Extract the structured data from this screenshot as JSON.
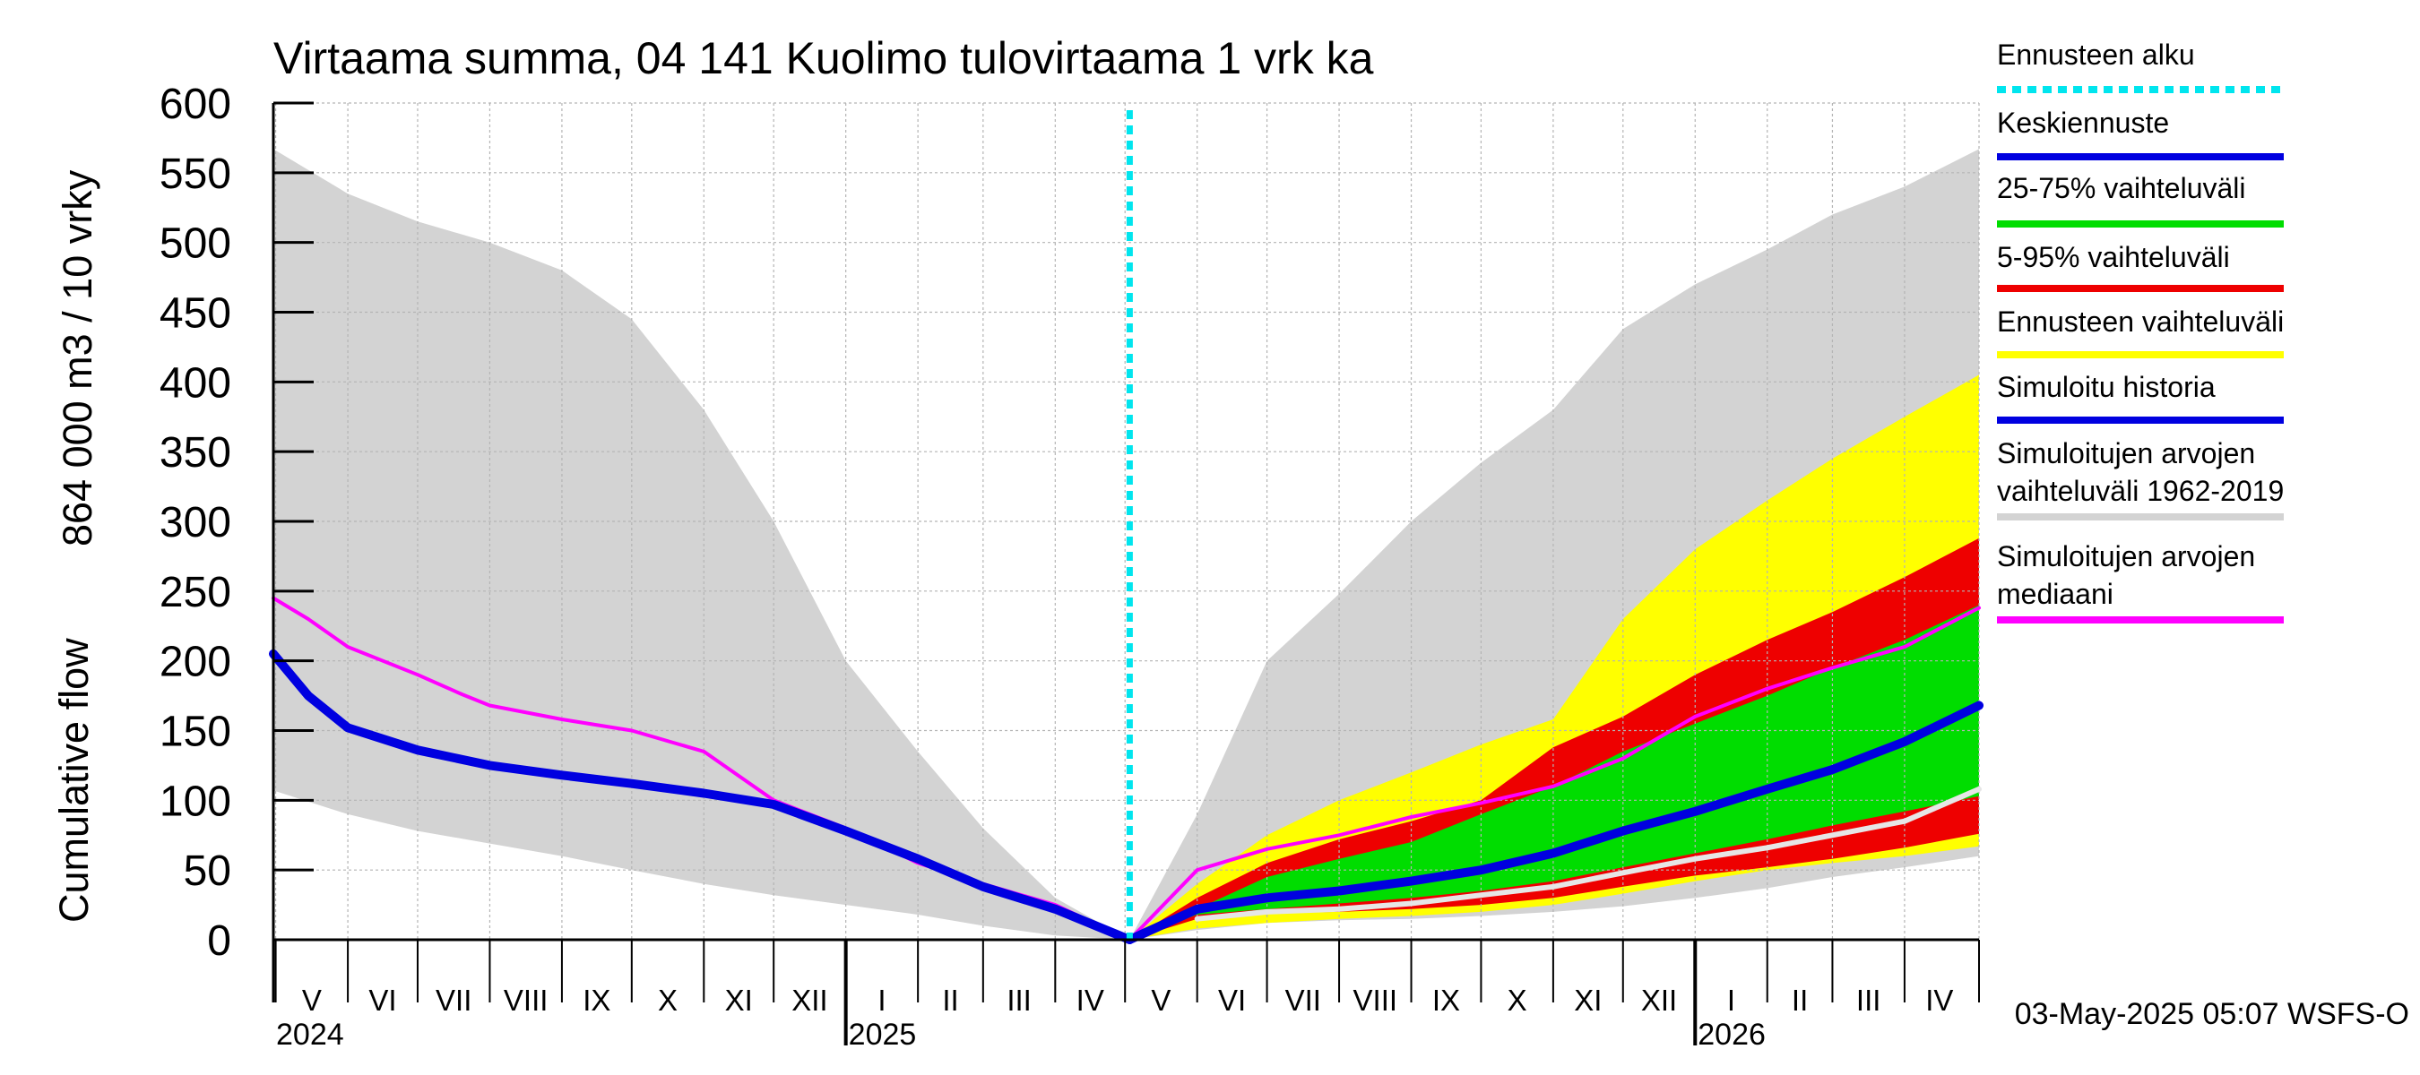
{
  "chart_data": {
    "type": "area",
    "title": "Virtaama summa, 04 141 Kuolimo tulovirtaama 1 vrk ka",
    "ylabel_line1": "864 000 m3 / 10 vrky",
    "ylabel_line2": "Cumulative flow",
    "ylim": [
      0,
      600
    ],
    "yticks": [
      0,
      50,
      100,
      150,
      200,
      250,
      300,
      350,
      400,
      450,
      500,
      550,
      600
    ],
    "xlim": [
      "2024-04-30",
      "2026-05-03"
    ],
    "forecast_start": "2025-05-03",
    "months": [
      {
        "label": "V",
        "start": "2024-05-01",
        "end": "2024-06-01"
      },
      {
        "label": "VI",
        "start": "2024-06-01",
        "end": "2024-07-01"
      },
      {
        "label": "VII",
        "start": "2024-07-01",
        "end": "2024-08-01"
      },
      {
        "label": "VIII",
        "start": "2024-08-01",
        "end": "2024-09-01"
      },
      {
        "label": "IX",
        "start": "2024-09-01",
        "end": "2024-10-01"
      },
      {
        "label": "X",
        "start": "2024-10-01",
        "end": "2024-11-01"
      },
      {
        "label": "XI",
        "start": "2024-11-01",
        "end": "2024-12-01"
      },
      {
        "label": "XII",
        "start": "2024-12-01",
        "end": "2025-01-01"
      },
      {
        "label": "I",
        "start": "2025-01-01",
        "end": "2025-02-01"
      },
      {
        "label": "II",
        "start": "2025-02-01",
        "end": "2025-03-01"
      },
      {
        "label": "III",
        "start": "2025-03-01",
        "end": "2025-04-01"
      },
      {
        "label": "IV",
        "start": "2025-04-01",
        "end": "2025-05-01"
      },
      {
        "label": "V",
        "start": "2025-05-01",
        "end": "2025-06-01"
      },
      {
        "label": "VI",
        "start": "2025-06-01",
        "end": "2025-07-01"
      },
      {
        "label": "VII",
        "start": "2025-07-01",
        "end": "2025-08-01"
      },
      {
        "label": "VIII",
        "start": "2025-08-01",
        "end": "2025-09-01"
      },
      {
        "label": "IX",
        "start": "2025-09-01",
        "end": "2025-10-01"
      },
      {
        "label": "X",
        "start": "2025-10-01",
        "end": "2025-11-01"
      },
      {
        "label": "XI",
        "start": "2025-11-01",
        "end": "2025-12-01"
      },
      {
        "label": "XII",
        "start": "2025-12-01",
        "end": "2026-01-01"
      },
      {
        "label": "I",
        "start": "2026-01-01",
        "end": "2026-02-01"
      },
      {
        "label": "II",
        "start": "2026-02-01",
        "end": "2026-03-01"
      },
      {
        "label": "III",
        "start": "2026-03-01",
        "end": "2026-04-01"
      },
      {
        "label": "IV",
        "start": "2026-04-01",
        "end": "2026-05-01"
      }
    ],
    "years": [
      {
        "label": "2024",
        "date": "2024-04-30"
      },
      {
        "label": "2025",
        "date": "2025-01-01"
      },
      {
        "label": "2026",
        "date": "2026-01-01"
      }
    ],
    "legend": [
      {
        "label": "Ennusteen alku",
        "color": "#00e5ee",
        "style": "dotted"
      },
      {
        "label": "Keskiennuste",
        "color": "#0000e0",
        "style": "solid"
      },
      {
        "label": "25-75% vaihteluväli",
        "color": "#00dd00",
        "style": "solid"
      },
      {
        "label": "5-95% vaihteluväli",
        "color": "#ee0000",
        "style": "solid"
      },
      {
        "label": "Ennusteen vaihteluväli",
        "color": "#ffff00",
        "style": "solid"
      },
      {
        "label": "Simuloitu historia",
        "color": "#0000e0",
        "style": "solid"
      },
      {
        "label": "Simuloitujen arvojen",
        "label2": "vaihteluväli 1962-2019",
        "color": "#d3d3d3",
        "style": "solid"
      },
      {
        "label": "Simuloitujen arvojen",
        "label2": "mediaani",
        "color": "#ff00ff",
        "style": "solid"
      }
    ],
    "colors": {
      "hist_range": "#d3d3d3",
      "ens_range": "#ffff00",
      "p5_95": "#ee0000",
      "p25_75": "#00dd00",
      "mean": "#0000e0",
      "history": "#0000e0",
      "median": "#ff00ff",
      "forecast_line": "#00e5ee",
      "white_line": "#e6e6e6"
    },
    "series": [
      {
        "name": "Simuloitujen arvojen vaihteluväli 1962-2019",
        "kind": "band",
        "color": "#d3d3d3",
        "x": [
          "2024-04-30",
          "2024-06-01",
          "2024-07-01",
          "2024-08-01",
          "2024-09-01",
          "2024-10-01",
          "2024-11-01",
          "2024-12-01",
          "2025-01-01",
          "2025-02-01",
          "2025-03-01",
          "2025-04-01",
          "2025-05-03",
          "2025-06-01",
          "2025-07-01",
          "2025-08-01",
          "2025-09-01",
          "2025-10-01",
          "2025-11-01",
          "2025-12-01",
          "2026-01-01",
          "2026-02-01",
          "2026-03-01",
          "2026-04-01",
          "2026-05-03"
        ],
        "upper": [
          567,
          535,
          515,
          500,
          480,
          445,
          380,
          300,
          200,
          135,
          80,
          30,
          0,
          90,
          200,
          248,
          300,
          342,
          380,
          438,
          470,
          495,
          520,
          540,
          567
        ],
        "lower": [
          107,
          90,
          78,
          69,
          60,
          50,
          40,
          32,
          25,
          18,
          10,
          3,
          0,
          7,
          12,
          14,
          15,
          17,
          20,
          24,
          30,
          37,
          45,
          52,
          60
        ]
      },
      {
        "name": "Ennusteen vaihteluväli",
        "kind": "band",
        "color": "#ffff00",
        "x": [
          "2025-05-03",
          "2025-06-01",
          "2025-07-01",
          "2025-08-01",
          "2025-09-01",
          "2025-10-01",
          "2025-11-01",
          "2025-12-01",
          "2026-01-01",
          "2026-02-01",
          "2026-03-01",
          "2026-04-01",
          "2026-05-03"
        ],
        "upper": [
          0,
          40,
          75,
          100,
          120,
          140,
          158,
          230,
          280,
          315,
          345,
          375,
          405
        ],
        "lower": [
          0,
          8,
          12,
          15,
          17,
          20,
          25,
          33,
          42,
          50,
          55,
          60,
          67
        ]
      },
      {
        "name": "5-95% vaihteluväli",
        "kind": "band",
        "color": "#ee0000",
        "x": [
          "2025-05-03",
          "2025-06-01",
          "2025-07-01",
          "2025-08-01",
          "2025-09-01",
          "2025-10-01",
          "2025-11-01",
          "2025-12-01",
          "2026-01-01",
          "2026-02-01",
          "2026-03-01",
          "2026-04-01",
          "2026-05-03"
        ],
        "upper": [
          0,
          30,
          55,
          72,
          85,
          100,
          138,
          160,
          190,
          215,
          235,
          260,
          288
        ],
        "lower": [
          0,
          15,
          19,
          20,
          22,
          25,
          30,
          38,
          46,
          52,
          58,
          66,
          76
        ]
      },
      {
        "name": "25-75% vaihteluväli",
        "kind": "band",
        "color": "#00dd00",
        "x": [
          "2025-05-03",
          "2025-06-01",
          "2025-07-01",
          "2025-08-01",
          "2025-09-01",
          "2025-10-01",
          "2025-11-01",
          "2025-12-01",
          "2026-01-01",
          "2026-02-01",
          "2026-03-01",
          "2026-04-01",
          "2026-05-03"
        ],
        "upper": [
          0,
          22,
          45,
          58,
          70,
          90,
          110,
          135,
          155,
          175,
          195,
          215,
          240
        ],
        "lower": [
          0,
          18,
          22,
          26,
          30,
          35,
          42,
          52,
          62,
          72,
          82,
          92,
          103
        ]
      },
      {
        "name": "Simuloitujen arvojen mediaani",
        "kind": "line",
        "color": "#ff00ff",
        "x": [
          "2024-04-30",
          "2024-05-15",
          "2024-06-01",
          "2024-07-01",
          "2024-07-20",
          "2024-08-01",
          "2024-09-01",
          "2024-10-01",
          "2024-11-01",
          "2024-12-01",
          "2025-01-01",
          "2025-02-01",
          "2025-03-01",
          "2025-04-01",
          "2025-05-03",
          "2025-06-01",
          "2025-07-01",
          "2025-08-01",
          "2025-09-01",
          "2025-10-01",
          "2025-11-01",
          "2025-12-01",
          "2026-01-01",
          "2026-02-01",
          "2026-03-01",
          "2026-04-01",
          "2026-05-03"
        ],
        "y": [
          245,
          230,
          210,
          190,
          176,
          168,
          158,
          150,
          135,
          100,
          80,
          55,
          40,
          25,
          0,
          50,
          65,
          75,
          88,
          98,
          110,
          130,
          160,
          180,
          195,
          210,
          238
        ]
      },
      {
        "name": "Simuloitu historia",
        "kind": "line",
        "color": "#0000e0",
        "x": [
          "2024-04-30",
          "2024-05-15",
          "2024-06-01",
          "2024-07-01",
          "2024-08-01",
          "2024-09-01",
          "2024-10-01",
          "2024-11-01",
          "2024-12-01",
          "2025-01-01",
          "2025-02-01",
          "2025-03-01",
          "2025-04-01",
          "2025-05-03"
        ],
        "y": [
          205,
          175,
          152,
          136,
          125,
          118,
          112,
          105,
          97,
          78,
          58,
          38,
          22,
          0
        ]
      },
      {
        "name": "Keskiennuste",
        "kind": "line",
        "color": "#0000e0",
        "x": [
          "2025-05-03",
          "2025-06-01",
          "2025-07-01",
          "2025-08-01",
          "2025-09-01",
          "2025-10-01",
          "2025-11-01",
          "2025-12-01",
          "2026-01-01",
          "2026-02-01",
          "2026-03-01",
          "2026-04-01",
          "2026-05-03"
        ],
        "y": [
          0,
          22,
          30,
          35,
          42,
          50,
          62,
          78,
          92,
          108,
          122,
          142,
          168
        ]
      },
      {
        "name": "white",
        "kind": "line",
        "color": "#e6e6e6",
        "x": [
          "2025-06-01",
          "2025-07-01",
          "2025-08-01",
          "2025-09-01",
          "2025-10-01",
          "2025-11-01",
          "2025-12-01",
          "2026-01-01",
          "2026-02-01",
          "2026-03-01",
          "2026-04-01",
          "2026-05-03"
        ],
        "y": [
          15,
          20,
          22,
          26,
          32,
          38,
          48,
          58,
          66,
          75,
          85,
          108
        ]
      }
    ]
  },
  "footer": "03-May-2025 05:07 WSFS-O"
}
